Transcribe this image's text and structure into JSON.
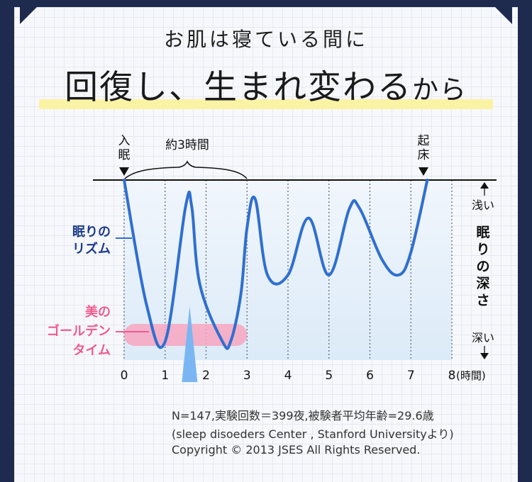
{
  "header": {
    "subtitle": "お肌は寝ている間に",
    "headline_main": "回復し、生まれ変わる",
    "headline_small": "から"
  },
  "labels": {
    "sleep_onset": "入眠",
    "wake": "起床",
    "about3h": "約3時間",
    "rhythm": [
      "眠りの",
      "リズム"
    ],
    "golden": [
      "美の",
      "ゴールデン",
      "タイム"
    ],
    "shallow": "浅い",
    "deep": "深い",
    "depth": "眠りの深さ",
    "x_unit": "(時間)"
  },
  "notes": [
    "N=147,実験回数＝399夜,被験者平均年齢=29.6歳",
    "(sleep disoeders Center , Stanford Universityより)",
    "Copyright © 2013 JSES All Rights Reserved."
  ],
  "colors": {
    "curve": "#2f6fd0",
    "rhythm_text": "#1a3a8c",
    "golden": "#f7a6c0",
    "golden_text": "#ee5b8e",
    "pointer": "#7ab6f2",
    "area_top": "#f1f6fc",
    "area_bottom": "#dcebf8"
  },
  "chart_data": {
    "type": "line",
    "x_ticks": [
      "0",
      "1",
      "2",
      "3",
      "4",
      "5",
      "6",
      "7",
      "8"
    ],
    "xlim": [
      0,
      8
    ],
    "ylim": [
      0,
      1
    ],
    "series": [
      {
        "name": "眠りのリズム",
        "x": [
          0,
          0.55,
          1.0,
          1.5,
          1.65,
          1.85,
          2.4,
          2.6,
          2.85,
          3.0,
          3.2,
          3.5,
          4.0,
          4.5,
          5.0,
          5.5,
          5.75,
          6.3,
          6.7,
          7.0,
          7.4
        ],
        "y": [
          0,
          0.66,
          0.85,
          0.14,
          0.14,
          0.55,
          0.85,
          0.85,
          0.6,
          0.25,
          0.1,
          0.5,
          0.5,
          0.2,
          0.5,
          0.15,
          0.15,
          0.42,
          0.5,
          0.38,
          0
        ]
      }
    ],
    "golden_time": [
      0,
      3
    ],
    "golden_peak": 1.6
  }
}
